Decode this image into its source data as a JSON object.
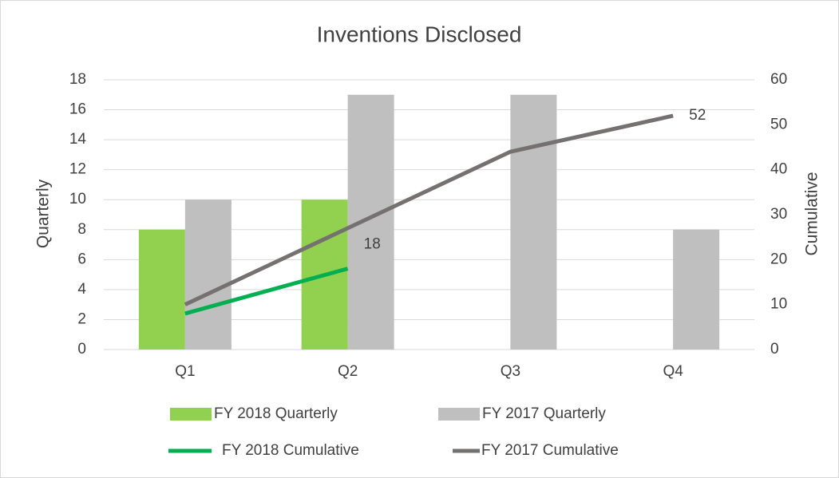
{
  "chart_data": {
    "type": "bar_line",
    "title": "Inventions Disclosed",
    "y_label": "Quarterly",
    "y2_label": "Cumulative",
    "categories": [
      "Q1",
      "Q2",
      "Q3",
      "Q4"
    ],
    "series": [
      {
        "name": "FY 2018 Quarterly",
        "type": "bar",
        "color": "#92d050",
        "values": [
          8,
          10,
          null,
          null
        ]
      },
      {
        "name": "FY 2017 Quarterly",
        "type": "bar",
        "color": "#bfbfbf",
        "values": [
          10,
          17,
          17,
          8
        ]
      },
      {
        "name": "FY 2018 Cumulative",
        "type": "line",
        "axis": "y2",
        "color": "#00b050",
        "values": [
          8,
          18,
          null,
          null
        ]
      },
      {
        "name": "FY 2017 Cumulative",
        "type": "line",
        "axis": "y2",
        "color": "#767171",
        "values": [
          10,
          27,
          44,
          52
        ]
      }
    ],
    "ylim": [
      0,
      18
    ],
    "yticks": [
      0,
      2,
      4,
      6,
      8,
      10,
      12,
      14,
      16,
      18
    ],
    "y2lim": [
      0,
      60
    ],
    "y2ticks": [
      0,
      10,
      20,
      30,
      40,
      50,
      60
    ],
    "grid": true,
    "data_labels": "last",
    "legend": "bottom"
  }
}
